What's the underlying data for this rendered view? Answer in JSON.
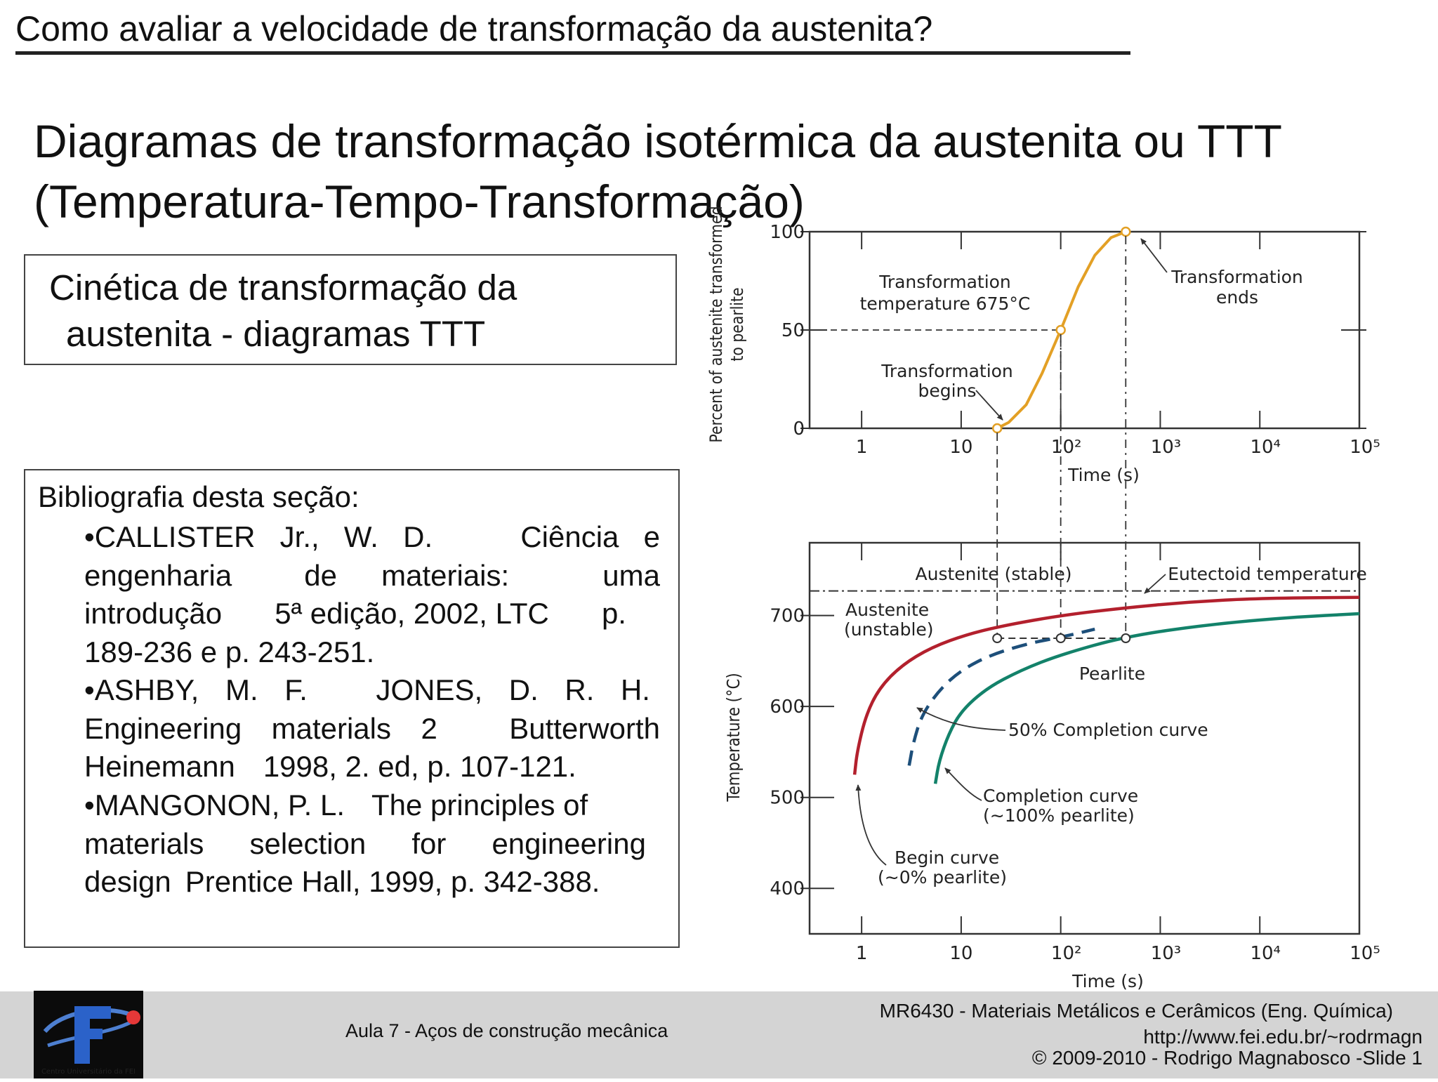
{
  "header": {
    "title": "Como avaliar a velocidade de transformação da austenita?"
  },
  "main_title": {
    "line1": "Diagramas de transformação isotérmica da austenita ou TTT",
    "line2": "(Temperatura-Tempo-Transformação)"
  },
  "kinetics_box": {
    "line1": "Cinética de transformação da",
    "line2": "austenita - diagramas TTT"
  },
  "bibliography": {
    "title": "Bibliografia desta seção:",
    "refs": [
      [
        "•CALLISTER",
        "Jr.,",
        "W.",
        "D.",
        "Ciência",
        "e"
      ],
      [
        "engenharia",
        "de",
        "materiais:",
        "uma"
      ],
      [
        "introdução",
        "5ª edição, 2002, LTC",
        "p."
      ],
      [
        "189-236 e p. 243-251."
      ],
      [
        "•ASHBY,",
        "M.",
        "F.",
        "JONES,",
        "D.",
        "R.",
        "H."
      ],
      [
        "Engineering",
        "materials",
        "2",
        "Butterworth"
      ],
      [
        "Heinemann",
        "1998, 2. ed, p. 107-121."
      ],
      [
        "•MANGONON, P. L.",
        "The principles of"
      ],
      [
        "materials",
        "selection",
        "for",
        "engineering"
      ],
      [
        "design",
        "Prentice Hall, 1999, p. 342-388."
      ]
    ]
  },
  "chart_data": [
    {
      "type": "line",
      "xlabel": "Time (s)",
      "ylabel": "Percent of austenite transformed to pearlite",
      "xscale": "log",
      "xlim": [
        0.3,
        100000
      ],
      "ylim": [
        0,
        100
      ],
      "x_ticks": [
        "1",
        "10",
        "10²",
        "10³",
        "10⁴",
        "10⁵"
      ],
      "y_ticks": [
        "0",
        "50",
        "100"
      ],
      "series": [
        {
          "x": [
            23,
            30,
            45,
            65,
            100,
            150,
            220,
            320,
            450
          ],
          "y": [
            0,
            3,
            12,
            28,
            50,
            72,
            88,
            97,
            100
          ]
        }
      ],
      "annotations": {
        "temperature": [
          "Transformation",
          "temperature 675°C"
        ],
        "ends": [
          "Transformation",
          "ends"
        ],
        "begins": [
          "Transformation",
          "begins"
        ]
      }
    },
    {
      "type": "line",
      "xlabel": "Time (s)",
      "ylabel": "Temperature (°C)",
      "xscale": "log",
      "xlim": [
        0.3,
        100000
      ],
      "ylim": [
        350,
        780
      ],
      "x_ticks": [
        "1",
        "10",
        "10²",
        "10³",
        "10⁴",
        "10⁵"
      ],
      "y_ticks": [
        "400",
        "500",
        "600",
        "700"
      ],
      "eutectoid_temperature": 727,
      "series": [
        {
          "x": [
            0.85,
            0.9,
            1.1,
            1.5,
            2.5,
            5,
            12,
            30,
            100,
            400,
            2000,
            10000,
            100000
          ],
          "y": [
            525,
            550,
            590,
            620,
            645,
            665,
            680,
            690,
            700,
            708,
            715,
            719,
            720
          ],
          "color": "#b3202d"
        },
        {
          "x": [
            3,
            3.3,
            4,
            6,
            10,
            20,
            50,
            100,
            220
          ],
          "y": [
            535,
            560,
            590,
            618,
            640,
            657,
            670,
            676,
            685
          ],
          "color": "#1d4f7a"
        },
        {
          "x": [
            5.5,
            6,
            7.5,
            10,
            18,
            40,
            100,
            450,
            3000,
            20000,
            100000
          ],
          "y": [
            515,
            540,
            570,
            595,
            620,
            640,
            657,
            677,
            690,
            698,
            702
          ],
          "color": "#13826a"
        }
      ],
      "annotations": {
        "stable": "Austenite (stable)",
        "eutectoid": "Eutectoid temperature",
        "unstable": [
          "Austenite",
          "(unstable)"
        ],
        "pearlite": "Pearlite",
        "fifty": "50% Completion curve",
        "completion": [
          "Completion curve",
          "(∼100% pearlite)"
        ],
        "begin": [
          "Begin curve",
          "(∼0% pearlite)"
        ]
      }
    }
  ],
  "footer": {
    "lecture": "Aula 7 - Aços de construção mecânica",
    "course": "MR6430 - Materiais Metálicos e Cerâmicos (Eng. Química)",
    "url": "http://www.fei.edu.br/~rodrmagn",
    "copyright": "© 2009-2010 - Rodrigo Magnabosco -Slide 1",
    "logo_text": "Centro Universitário da FEI"
  }
}
